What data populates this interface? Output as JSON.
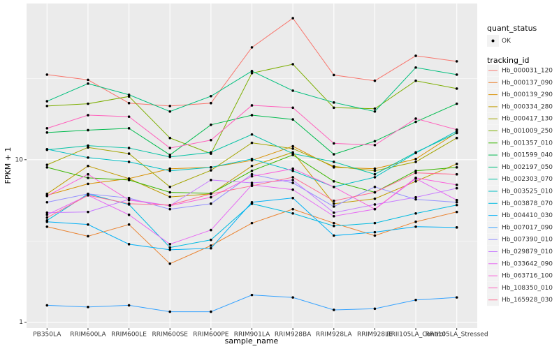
{
  "chart_data": {
    "type": "line",
    "x_label": "sample_name",
    "y_label": "FPKM + 1",
    "categories": [
      "PB350LA",
      "RRIM600LA",
      "RRIM600LE",
      "RRIM600SE",
      "RRIM600PE",
      "RRIM901LA",
      "RRIM928BA",
      "RRIM928LA",
      "RRIM928LE",
      "RRII105LA_Control",
      "RRII105LA_Stressed"
    ],
    "ylim": [
      0.92,
      91.5
    ],
    "yticks": [
      1,
      10
    ],
    "log_scale": true,
    "grid": true,
    "point_legend": {
      "title": "quant_status",
      "label": "OK"
    },
    "legend_title": "tracking_id",
    "series": [
      {
        "name": "Hb_000031_120",
        "color": "#F8766D",
        "values": [
          33.4,
          31,
          22.3,
          21.4,
          22.3,
          49.1,
          74.3,
          33.2,
          30.6,
          43.6,
          40.3
        ]
      },
      {
        "name": "Hb_000137_090",
        "color": "#EA8331",
        "values": [
          3.87,
          3.38,
          3.99,
          2.29,
          2.96,
          4.07,
          4.96,
          4.07,
          3.41,
          4.15,
          4.77
        ]
      },
      {
        "name": "Hb_000139_290",
        "color": "#D89000",
        "values": [
          6.04,
          7.1,
          7.65,
          8.8,
          8.97,
          9.9,
          12.1,
          8.97,
          8.8,
          10.1,
          14.7
        ]
      },
      {
        "name": "Hb_000334_280",
        "color": "#C09B00",
        "values": [
          6.16,
          9.15,
          7.65,
          5.9,
          6.16,
          9.15,
          11.1,
          5.36,
          5.75,
          7.36,
          9.42
        ]
      },
      {
        "name": "Hb_000417_130",
        "color": "#A3A500",
        "values": [
          9.3,
          11.9,
          10.9,
          6.8,
          8.6,
          12.7,
          11.7,
          9.1,
          8.54,
          9.7,
          13.6
        ]
      },
      {
        "name": "Hb_001009_250",
        "color": "#7CAE00",
        "values": [
          21.4,
          22.1,
          24.5,
          13.6,
          10.9,
          34.1,
          38.7,
          20.9,
          20.6,
          30.6,
          27.4
        ]
      },
      {
        "name": "Hb_001357_010",
        "color": "#39B600",
        "values": [
          8.97,
          7.73,
          7.5,
          6.3,
          6.2,
          8.54,
          10.7,
          7.36,
          6.3,
          8.54,
          8.97
        ]
      },
      {
        "name": "Hb_001599_040",
        "color": "#00BB4E",
        "values": [
          14.7,
          15.2,
          15.6,
          10.7,
          16.4,
          18.8,
          17.7,
          10.8,
          13,
          17.1,
          22.1
        ]
      },
      {
        "name": "Hb_002197_050",
        "color": "#00BF7D",
        "values": [
          22.9,
          29.4,
          25.1,
          19.8,
          24.6,
          35.1,
          26.6,
          22.5,
          19.8,
          36.9,
          33.4
        ]
      },
      {
        "name": "Hb_002303_070",
        "color": "#00C1A3",
        "values": [
          11.5,
          12.2,
          11.8,
          10.4,
          11.1,
          14.3,
          10.9,
          9.7,
          8.13,
          11.1,
          14.6
        ]
      },
      {
        "name": "Hb_003525_010",
        "color": "#00BFC4",
        "values": [
          11.6,
          10.3,
          9.7,
          8.54,
          8.97,
          10.1,
          8.54,
          6.8,
          7.8,
          11,
          15
        ]
      },
      {
        "name": "Hb_003878_070",
        "color": "#00BAE0",
        "values": [
          4.23,
          6.16,
          5.3,
          2.88,
          3.21,
          5.36,
          4.67,
          3.91,
          4.07,
          4.67,
          5.26
        ]
      },
      {
        "name": "Hb_004410_030",
        "color": "#00B0F6",
        "values": [
          4.15,
          3.99,
          3.02,
          2.79,
          2.85,
          5.47,
          5.81,
          3.41,
          3.58,
          3.87,
          3.83
        ]
      },
      {
        "name": "Hb_007017_090",
        "color": "#35A2FF",
        "values": [
          1.27,
          1.24,
          1.27,
          1.16,
          1.16,
          1.47,
          1.42,
          1.19,
          1.21,
          1.37,
          1.42
        ]
      },
      {
        "name": "Hb_007390_010",
        "color": "#9590FF",
        "values": [
          5.47,
          6.16,
          5.81,
          4.96,
          5.36,
          8.13,
          7.2,
          5.15,
          6.8,
          5.7,
          5.47
        ]
      },
      {
        "name": "Hb_029879_010",
        "color": "#C77CFF",
        "values": [
          4.72,
          4.77,
          5.7,
          5.21,
          7.5,
          7.2,
          7.5,
          4.72,
          5.3,
          5.87,
          6.67
        ]
      },
      {
        "name": "Hb_033642_090",
        "color": "#E76BF3",
        "values": [
          4.58,
          6.04,
          4.58,
          3.02,
          3.69,
          7,
          6.54,
          4.49,
          4.96,
          7.65,
          5.64
        ]
      },
      {
        "name": "Hb_063716_100",
        "color": "#FA62DB",
        "values": [
          5.98,
          8.13,
          5.64,
          5.21,
          5.87,
          7.9,
          8.8,
          6.8,
          4.96,
          7.73,
          7
        ]
      },
      {
        "name": "Hb_108350_010",
        "color": "#FF62BC",
        "values": [
          15.6,
          18.8,
          18.4,
          11.8,
          13.2,
          21.6,
          20.9,
          12.6,
          12.3,
          17.9,
          15.3
        ]
      },
      {
        "name": "Hb_165928_030",
        "color": "#FF6C91",
        "values": [
          4.4,
          6.04,
          5.36,
          5.26,
          6.16,
          6.9,
          7.8,
          5.58,
          6.3,
          8.3,
          8.13
        ]
      }
    ]
  }
}
